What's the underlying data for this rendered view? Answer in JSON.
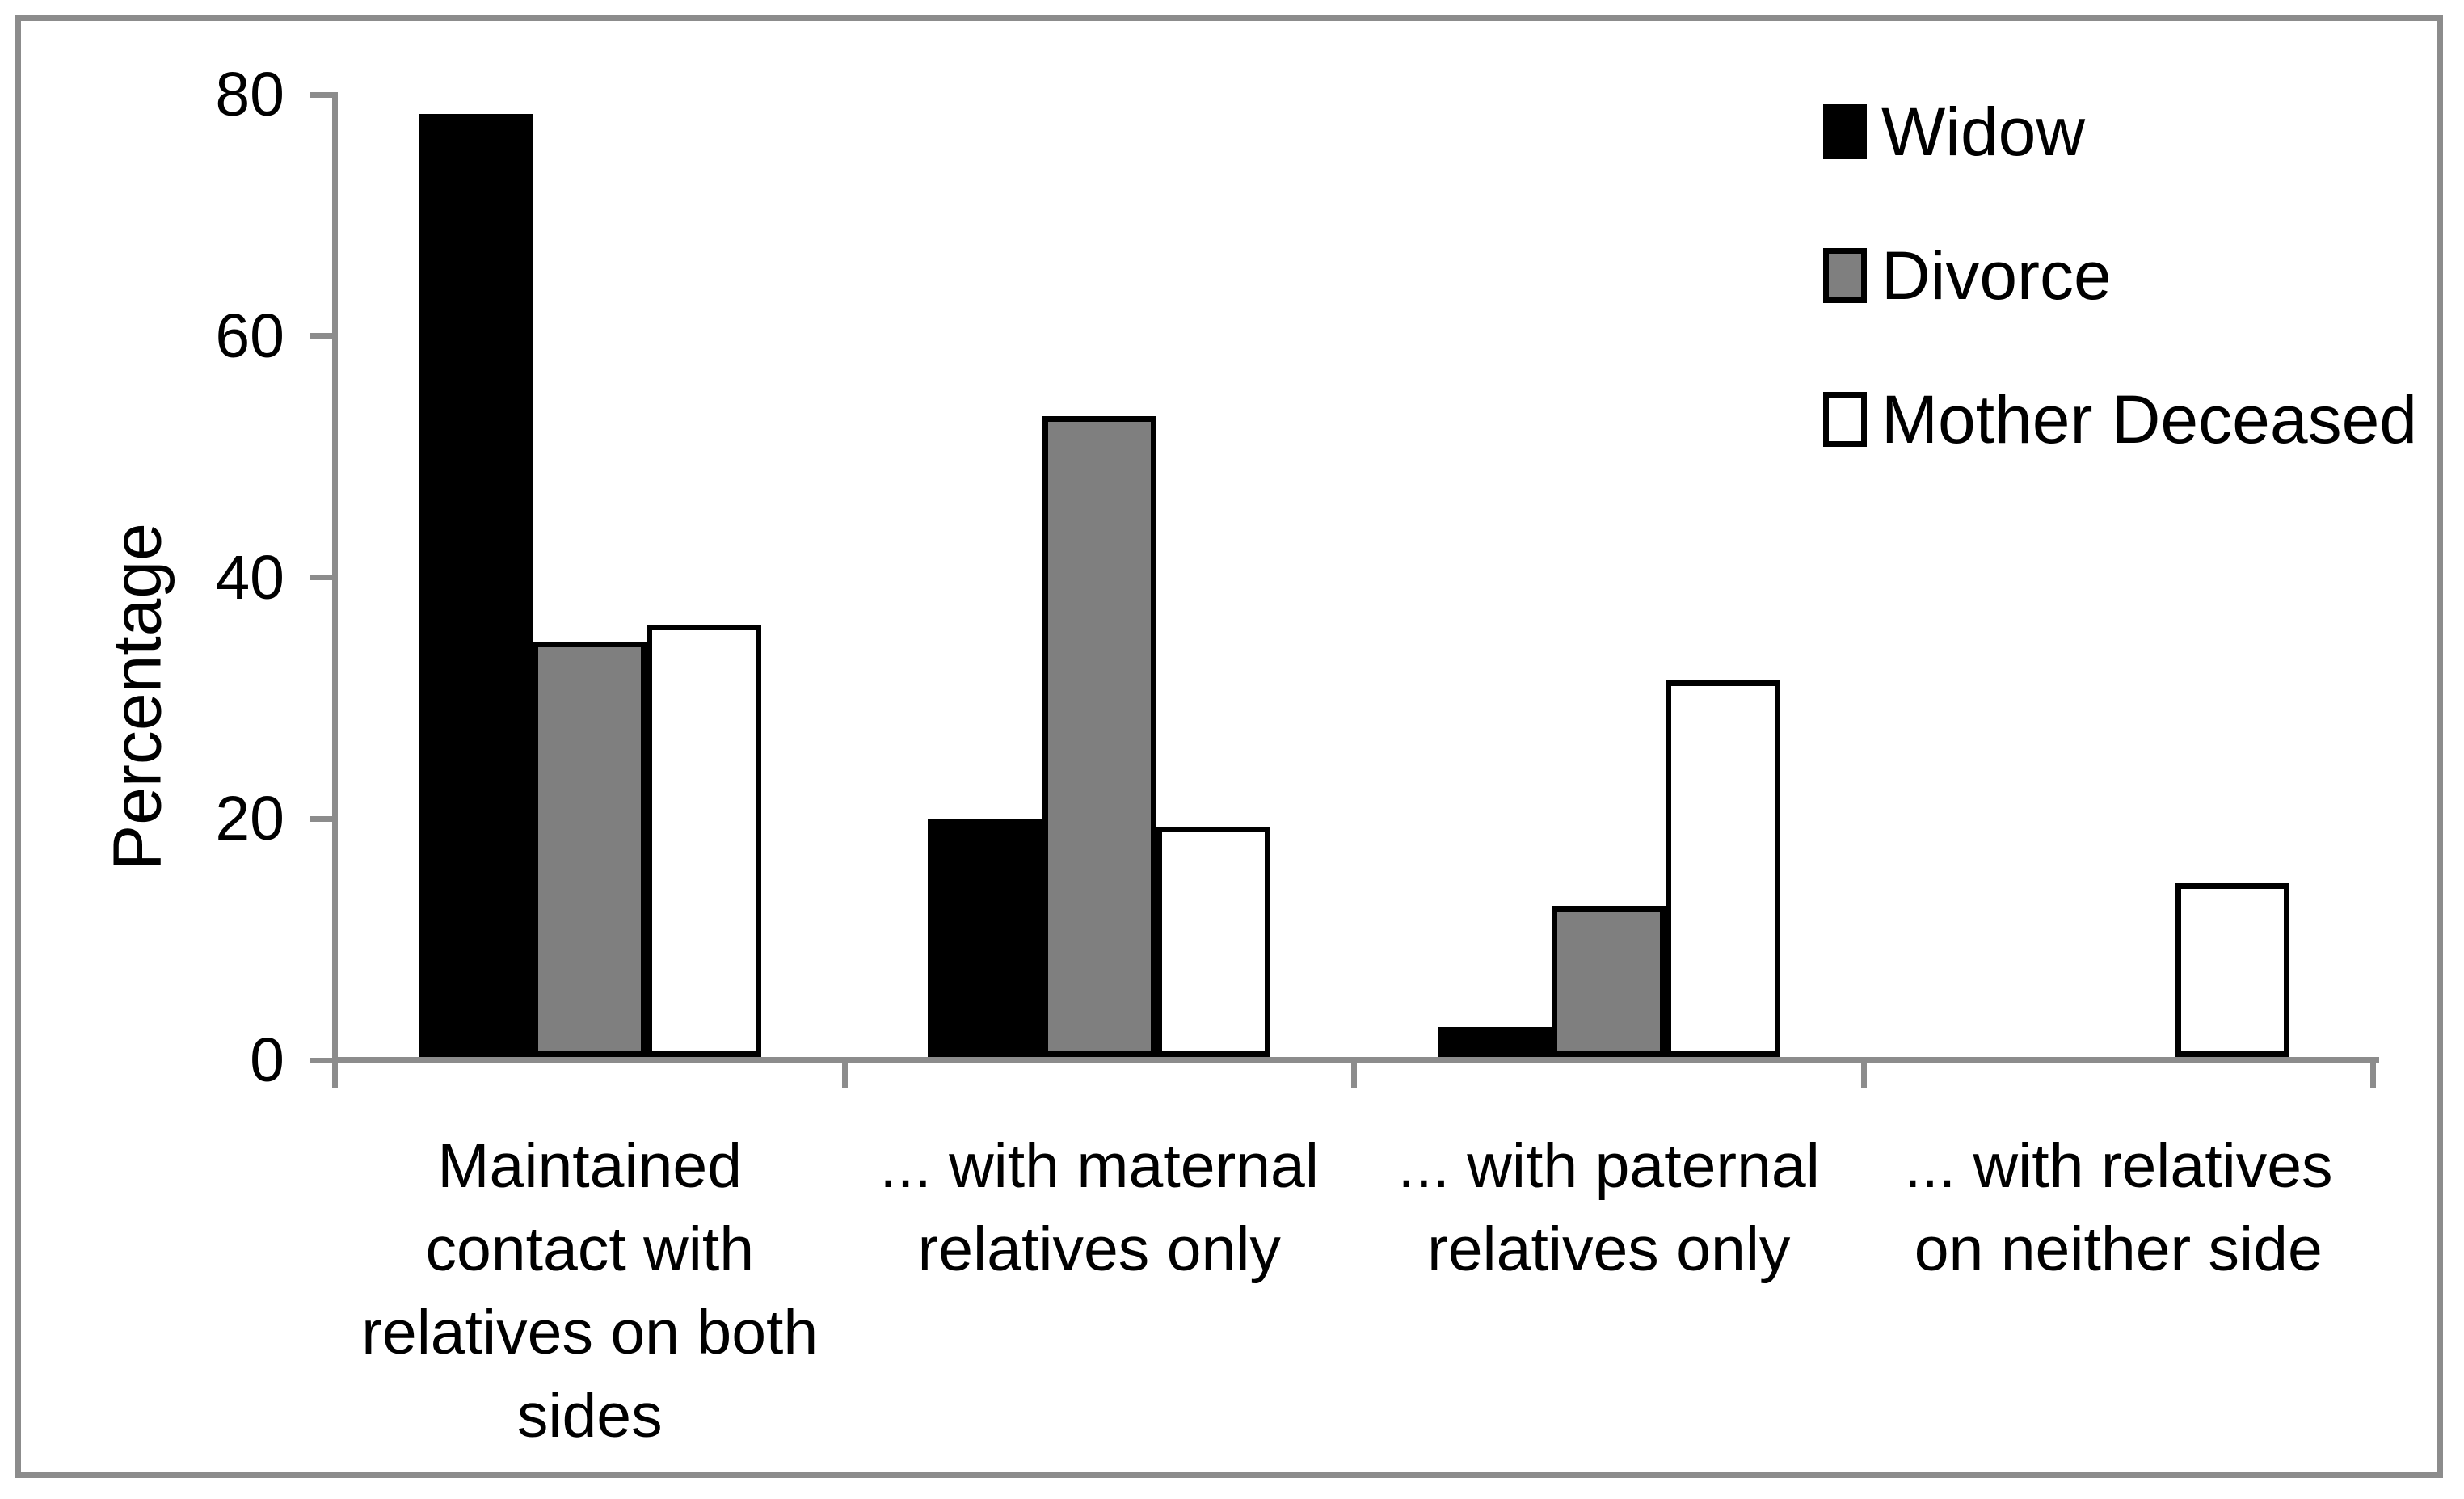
{
  "figure": {
    "background_color": "#FFFFFF",
    "frame_color": "#8C8C8C",
    "axis_color": "#8C8C8C"
  },
  "axis": {
    "y_title": "Percentage",
    "y_tick_labels": [
      "0",
      "20",
      "40",
      "60",
      "80"
    ],
    "x_tick_labels_display": [
      "Maintained\ncontact with\nrelatives on both\nsides",
      "... with maternal\nrelatives only",
      "... with paternal\nrelatives only",
      "... with relatives\non neither side"
    ]
  },
  "legend": {
    "items": [
      {
        "label": "Widow",
        "color": "#000000"
      },
      {
        "label": "Divorce",
        "color": "#7F7F7F"
      },
      {
        "label": "Mother Deceased",
        "color": "#FFFFFF"
      }
    ]
  },
  "chart_data": {
    "type": "bar",
    "title": "",
    "xlabel": "",
    "ylabel": "Percentage",
    "categories": [
      "Maintained contact with relatives on both sides",
      "... with maternal relatives only",
      "... with paternal relatives only",
      "... with relatives on neither side"
    ],
    "series": [
      {
        "name": "Widow",
        "color": "#000000",
        "outline": "#000000",
        "values": [
          78.1,
          19.7,
          2.5,
          0
        ]
      },
      {
        "name": "Divorce",
        "color": "#7F7F7F",
        "outline": "#000000",
        "values": [
          34.4,
          53.1,
          12.5,
          0
        ]
      },
      {
        "name": "Mother Deceased",
        "color": "#FFFFFF",
        "outline": "#000000",
        "values": [
          35.8,
          19.1,
          31.2,
          14.4
        ]
      }
    ],
    "ylim": [
      0,
      80
    ],
    "yticks": [
      0,
      20,
      40,
      60,
      80
    ],
    "grid": false,
    "legend_position": "upper right"
  }
}
